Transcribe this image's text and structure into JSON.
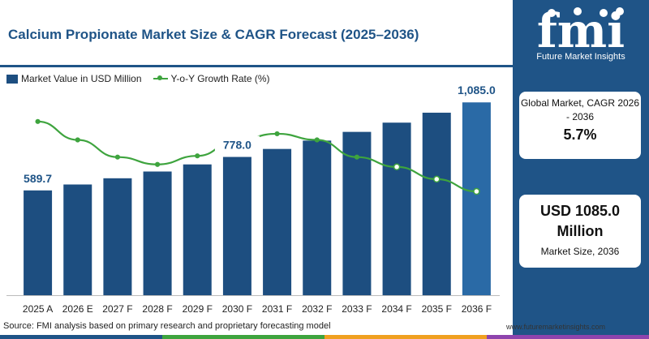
{
  "title": "Calcium Propionate Market Size & CAGR Forecast (2025–2036)",
  "legend": {
    "bar_label": "Market Value in USD Million",
    "line_label": "Y-o-Y Growth Rate (%)"
  },
  "colors": {
    "title": "#1f5487",
    "bar": "#1d4e80",
    "bar_last": "#2a6aa6",
    "line": "#3ea43e",
    "panel": "#1f5487",
    "strip": [
      "#1f5487",
      "#3ea43e",
      "#f0a020",
      "#8e44ad"
    ]
  },
  "chart_data": {
    "type": "bar",
    "title": "Calcium Propionate Market Size & CAGR Forecast (2025–2036)",
    "categories": [
      "2025 A",
      "2026 E",
      "2027 F",
      "2028 F",
      "2029 F",
      "2030 F",
      "2031 F",
      "2032 F",
      "2033 F",
      "2034 F",
      "2035 F",
      "2036 F"
    ],
    "series": [
      {
        "name": "Market Value in USD Million",
        "type": "bar",
        "values": [
          589.7,
          623,
          658,
          696,
          736,
          778,
          823,
          870,
          919,
          971,
          1027,
          1085.0
        ]
      },
      {
        "name": "Y-o-Y Growth Rate (%)",
        "type": "line",
        "values": [
          5.95,
          5.8,
          5.66,
          5.6,
          5.67,
          5.8,
          5.85,
          5.8,
          5.66,
          5.58,
          5.48,
          5.38
        ]
      }
    ],
    "data_labels": [
      {
        "category": "2025 A",
        "text": "589.7"
      },
      {
        "category": "2030 F",
        "text": "778.0"
      },
      {
        "category": "2036 F",
        "text": "1,085.0"
      }
    ],
    "ylim": [
      0,
      1150
    ],
    "growth_ylim": [
      4.6,
      6.2
    ],
    "grid": false,
    "legend_position": "top-left"
  },
  "sidebar": {
    "logo_text": "fmi",
    "logo_subtitle": "Future Market Insights",
    "card1": {
      "label": "Global Market, CAGR 2026 - 2036",
      "value": "5.7%"
    },
    "card2": {
      "value": "USD 1085.0 Million",
      "label": "Market Size, 2036"
    }
  },
  "footer": {
    "source": "Source: FMI analysis based on primary research and proprietary forecasting model",
    "website": "www.futuremarketinsights.com"
  }
}
